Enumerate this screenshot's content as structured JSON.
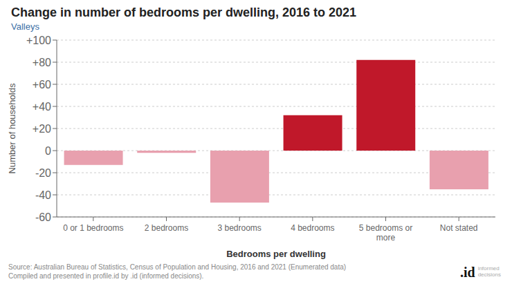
{
  "chart_data": {
    "type": "bar",
    "title": "Change in number of bedrooms per dwelling, 2016 to 2021",
    "subtitle": "Valleys",
    "categories": [
      "0 or 1 bedrooms",
      "2 bedrooms",
      "3 bedrooms",
      "4 bedrooms",
      "5 bedrooms or\nmore",
      "Not stated"
    ],
    "values": [
      -13,
      -2,
      -47,
      32,
      82,
      -35
    ],
    "colors": [
      "#e8a0ae",
      "#e8a0ae",
      "#e8a0ae",
      "#c0182a",
      "#c0182a",
      "#e8a0ae"
    ],
    "xlabel": "Bedrooms per dwelling",
    "ylabel": "Number of households",
    "ylim": [
      -60,
      100
    ],
    "yticks": [
      -60,
      -40,
      -20,
      0,
      {
        "value": 20,
        "label": "+20"
      },
      {
        "value": 40,
        "label": "+40"
      },
      {
        "value": 60,
        "label": "+60"
      },
      {
        "value": 80,
        "label": "+80"
      },
      {
        "value": 100,
        "label": "+100"
      }
    ],
    "grid": true,
    "annotations": [
      "Source: Australian Bureau of Statistics, Census of Population and Housing, 2016 and 2021 (Enumerated data)\nCompiled and presented in profile.id by .id (informed decisions).",
      ".id",
      "informed\ndecisions"
    ]
  }
}
